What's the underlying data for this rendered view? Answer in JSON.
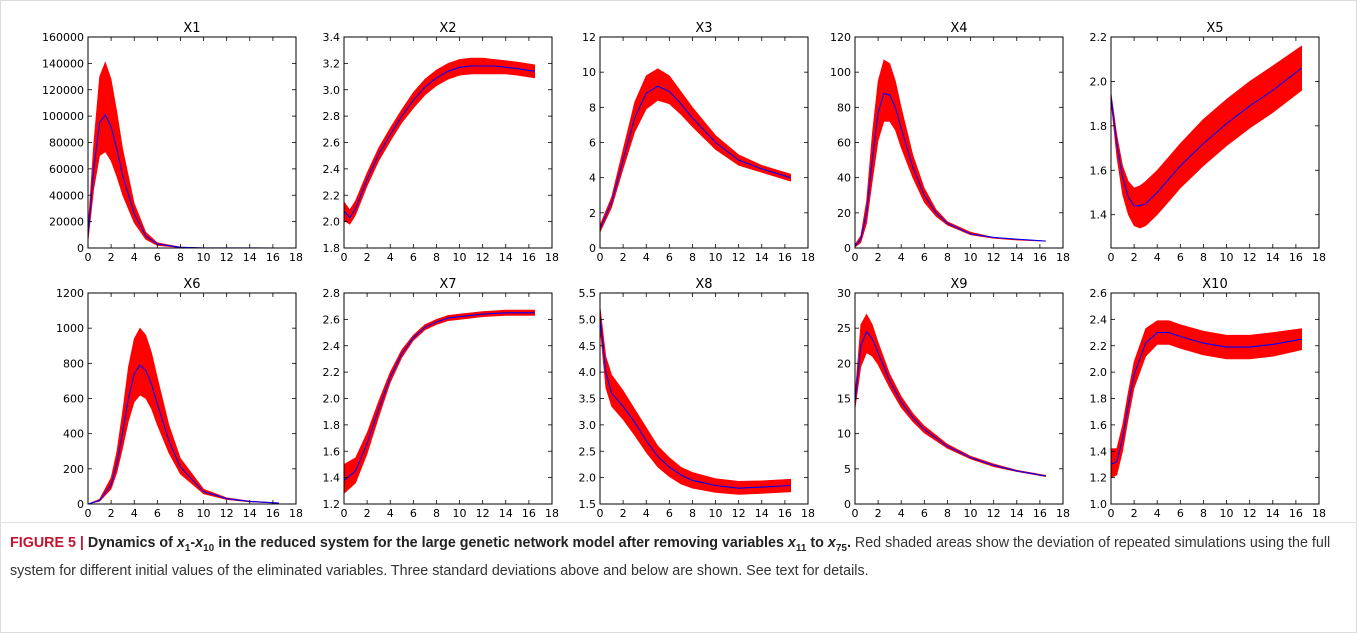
{
  "colors": {
    "band": "#ff0000",
    "mean_line": "#0000ff",
    "axes": "#000000",
    "caption_label": "#c4122f"
  },
  "caption": {
    "label": "FIGURE 5 | ",
    "title_parts": [
      "Dynamics of ",
      "x",
      "1",
      "-",
      "x",
      "10",
      " in the reduced system for the large genetic network model after removing variables ",
      "x",
      "11",
      " to ",
      "x",
      "75",
      "."
    ],
    "body": " Red shaded areas show the deviation of repeated simulations using the full system for different initial values of the eliminated variables. Three standard deviations above and below are shown. See text for details."
  },
  "chart_data": [
    {
      "type": "area",
      "title": "X1",
      "xlim": [
        0,
        18
      ],
      "ylim": [
        0,
        160000
      ],
      "xticks": [
        "0",
        "2",
        "4",
        "6",
        "8",
        "10",
        "12",
        "14",
        "16",
        "18"
      ],
      "yticks": [
        "0",
        "20000",
        "40000",
        "60000",
        "80000",
        "100000",
        "120000",
        "140000",
        "160000"
      ],
      "x": [
        0,
        0.5,
        1,
        1.5,
        2,
        2.5,
        3,
        4,
        5,
        6,
        8,
        10,
        16.5
      ],
      "mean": [
        10000,
        60000,
        95000,
        101000,
        92000,
        75000,
        55000,
        26000,
        9000,
        3000,
        500,
        100,
        0
      ],
      "upper": [
        15000,
        80000,
        130000,
        141000,
        128000,
        103000,
        75000,
        34000,
        12000,
        4000,
        700,
        150,
        0
      ],
      "lower": [
        5000,
        45000,
        70000,
        73000,
        66000,
        54000,
        40000,
        19000,
        6500,
        2000,
        300,
        50,
        0
      ]
    },
    {
      "type": "area",
      "title": "X2",
      "xlim": [
        0,
        18
      ],
      "ylim": [
        1.8,
        3.4
      ],
      "xticks": [
        "0",
        "2",
        "4",
        "6",
        "8",
        "10",
        "12",
        "14",
        "16",
        "18"
      ],
      "yticks": [
        "1.8",
        "2.0",
        "2.2",
        "2.4",
        "2.6",
        "2.8",
        "3.0",
        "3.2",
        "3.4"
      ],
      "x": [
        0,
        0.5,
        1,
        2,
        3,
        4,
        5,
        6,
        7,
        8,
        9,
        10,
        11,
        12,
        13,
        14,
        15,
        16.5
      ],
      "mean": [
        2.08,
        2.03,
        2.1,
        2.32,
        2.51,
        2.66,
        2.8,
        2.92,
        3.02,
        3.09,
        3.14,
        3.17,
        3.18,
        3.18,
        3.18,
        3.17,
        3.16,
        3.14
      ],
      "upper": [
        2.15,
        2.09,
        2.16,
        2.37,
        2.56,
        2.71,
        2.85,
        2.98,
        3.08,
        3.15,
        3.2,
        3.23,
        3.24,
        3.24,
        3.23,
        3.22,
        3.21,
        3.19
      ],
      "lower": [
        2.01,
        1.98,
        2.05,
        2.27,
        2.46,
        2.61,
        2.75,
        2.86,
        2.96,
        3.03,
        3.08,
        3.11,
        3.12,
        3.12,
        3.12,
        3.12,
        3.11,
        3.09
      ]
    },
    {
      "type": "area",
      "title": "X3",
      "xlim": [
        0,
        18
      ],
      "ylim": [
        0,
        12
      ],
      "xticks": [
        "0",
        "2",
        "4",
        "6",
        "8",
        "10",
        "12",
        "14",
        "16",
        "18"
      ],
      "yticks": [
        "0",
        "2",
        "4",
        "6",
        "8",
        "10",
        "12"
      ],
      "x": [
        0,
        1,
        2,
        3,
        4,
        5,
        6,
        7,
        8,
        10,
        12,
        14,
        16.5
      ],
      "mean": [
        1.1,
        2.6,
        5.0,
        7.4,
        8.8,
        9.2,
        8.9,
        8.2,
        7.4,
        6.0,
        5.0,
        4.5,
        4.0
      ],
      "upper": [
        1.3,
        2.9,
        5.6,
        8.3,
        9.8,
        10.2,
        9.8,
        8.9,
        8.0,
        6.4,
        5.3,
        4.7,
        4.2
      ],
      "lower": [
        0.9,
        2.3,
        4.5,
        6.6,
        7.9,
        8.4,
        8.2,
        7.6,
        6.9,
        5.6,
        4.7,
        4.3,
        3.8
      ]
    },
    {
      "type": "area",
      "title": "X4",
      "xlim": [
        0,
        18
      ],
      "ylim": [
        0,
        120
      ],
      "xticks": [
        "0",
        "2",
        "4",
        "6",
        "8",
        "10",
        "12",
        "14",
        "16",
        "18"
      ],
      "yticks": [
        "0",
        "20",
        "40",
        "60",
        "80",
        "100",
        "120"
      ],
      "x": [
        0,
        0.5,
        1,
        1.5,
        2,
        2.5,
        3,
        3.5,
        4,
        5,
        6,
        7,
        8,
        10,
        12,
        14,
        16.5
      ],
      "mean": [
        1,
        5,
        20,
        50,
        77,
        88,
        87,
        80,
        68,
        46,
        30,
        20,
        14,
        8,
        6,
        5,
        4
      ],
      "upper": [
        2,
        7,
        27,
        65,
        95,
        107,
        105,
        95,
        80,
        53,
        34,
        22,
        15,
        9,
        6,
        5,
        4
      ],
      "lower": [
        0.5,
        3,
        14,
        38,
        61,
        72,
        72,
        67,
        57,
        40,
        26,
        18,
        13,
        7.5,
        5.5,
        4.5,
        3.8
      ]
    },
    {
      "type": "area",
      "title": "X5",
      "xlim": [
        0,
        18
      ],
      "ylim": [
        1.25,
        2.2
      ],
      "xticks": [
        "0",
        "2",
        "4",
        "6",
        "8",
        "10",
        "12",
        "14",
        "16",
        "18"
      ],
      "yticks": [
        "1.4",
        "1.6",
        "1.8",
        "2.0",
        "2.2"
      ],
      "x": [
        0,
        0.5,
        1,
        1.5,
        2,
        2.5,
        3,
        4,
        5,
        6,
        8,
        10,
        12,
        14,
        16.5
      ],
      "mean": [
        1.93,
        1.72,
        1.57,
        1.48,
        1.44,
        1.44,
        1.45,
        1.5,
        1.56,
        1.62,
        1.72,
        1.81,
        1.89,
        1.96,
        2.06
      ],
      "upper": [
        1.95,
        1.76,
        1.62,
        1.55,
        1.52,
        1.53,
        1.55,
        1.6,
        1.66,
        1.72,
        1.83,
        1.92,
        2.0,
        2.07,
        2.16
      ],
      "lower": [
        1.91,
        1.66,
        1.49,
        1.4,
        1.35,
        1.34,
        1.35,
        1.4,
        1.46,
        1.52,
        1.62,
        1.71,
        1.79,
        1.86,
        1.96
      ]
    },
    {
      "type": "area",
      "title": "X6",
      "xlim": [
        0,
        18
      ],
      "ylim": [
        0,
        1200
      ],
      "xticks": [
        "0",
        "2",
        "4",
        "6",
        "8",
        "10",
        "12",
        "14",
        "16",
        "18"
      ],
      "yticks": [
        "0",
        "200",
        "400",
        "600",
        "800",
        "1000",
        "1200"
      ],
      "x": [
        0,
        1,
        2,
        2.5,
        3,
        3.5,
        4,
        4.5,
        5,
        5.5,
        6,
        7,
        8,
        10,
        12,
        14,
        16.5
      ],
      "mean": [
        0,
        20,
        110,
        230,
        410,
        600,
        740,
        790,
        760,
        680,
        570,
        360,
        210,
        70,
        30,
        15,
        5
      ],
      "upper": [
        0,
        28,
        150,
        300,
        530,
        780,
        940,
        1000,
        960,
        860,
        720,
        450,
        260,
        85,
        35,
        17,
        6
      ],
      "lower": [
        0,
        15,
        85,
        180,
        320,
        470,
        580,
        620,
        600,
        540,
        450,
        290,
        170,
        58,
        25,
        12,
        4
      ]
    },
    {
      "type": "area",
      "title": "X7",
      "xlim": [
        0,
        18
      ],
      "ylim": [
        1.2,
        2.8
      ],
      "xticks": [
        "0",
        "2",
        "4",
        "6",
        "8",
        "10",
        "12",
        "14",
        "16",
        "18"
      ],
      "yticks": [
        "1.2",
        "1.4",
        "1.6",
        "1.8",
        "2.0",
        "2.2",
        "2.4",
        "2.6",
        "2.8"
      ],
      "x": [
        0,
        1,
        2,
        3,
        4,
        5,
        6,
        7,
        8,
        9,
        10,
        12,
        14,
        16.5
      ],
      "mean": [
        1.38,
        1.45,
        1.66,
        1.92,
        2.16,
        2.34,
        2.46,
        2.54,
        2.58,
        2.61,
        2.62,
        2.64,
        2.65,
        2.65
      ],
      "upper": [
        1.5,
        1.55,
        1.74,
        1.98,
        2.2,
        2.37,
        2.48,
        2.56,
        2.6,
        2.63,
        2.64,
        2.66,
        2.67,
        2.67
      ],
      "lower": [
        1.28,
        1.36,
        1.58,
        1.86,
        2.12,
        2.31,
        2.44,
        2.52,
        2.56,
        2.59,
        2.6,
        2.62,
        2.63,
        2.63
      ]
    },
    {
      "type": "area",
      "title": "X8",
      "xlim": [
        0,
        18
      ],
      "ylim": [
        1.5,
        5.5
      ],
      "xticks": [
        "0",
        "2",
        "4",
        "6",
        "8",
        "10",
        "12",
        "14",
        "16",
        "18"
      ],
      "yticks": [
        "1.5",
        "2.0",
        "2.5",
        "3.0",
        "3.5",
        "4.0",
        "4.5",
        "5.0",
        "5.5"
      ],
      "x": [
        0,
        0.5,
        1,
        2,
        3,
        4,
        5,
        6,
        7,
        8,
        10,
        12,
        14,
        16.5
      ],
      "mean": [
        5.05,
        4.0,
        3.6,
        3.35,
        3.05,
        2.7,
        2.4,
        2.2,
        2.05,
        1.95,
        1.85,
        1.8,
        1.82,
        1.85
      ],
      "upper": [
        5.25,
        4.3,
        3.95,
        3.65,
        3.3,
        2.95,
        2.6,
        2.38,
        2.2,
        2.1,
        1.98,
        1.93,
        1.94,
        1.97
      ],
      "lower": [
        4.85,
        3.7,
        3.35,
        3.1,
        2.8,
        2.48,
        2.2,
        2.02,
        1.88,
        1.8,
        1.72,
        1.68,
        1.7,
        1.73
      ]
    },
    {
      "type": "area",
      "title": "X9",
      "xlim": [
        0,
        18
      ],
      "ylim": [
        0,
        30
      ],
      "xticks": [
        "0",
        "2",
        "4",
        "6",
        "8",
        "10",
        "12",
        "14",
        "16",
        "18"
      ],
      "yticks": [
        "0",
        "5",
        "10",
        "15",
        "20",
        "25",
        "30"
      ],
      "x": [
        0,
        0.5,
        1,
        1.5,
        2,
        3,
        4,
        5,
        6,
        8,
        10,
        12,
        14,
        16.5
      ],
      "mean": [
        14.5,
        22.5,
        24.5,
        23.5,
        21.5,
        17.5,
        14.5,
        12.3,
        10.6,
        8.2,
        6.6,
        5.5,
        4.7,
        4.0
      ],
      "upper": [
        15.5,
        25.5,
        27.0,
        25.5,
        23.0,
        18.5,
        15.3,
        12.9,
        11.1,
        8.5,
        6.8,
        5.7,
        4.8,
        4.1
      ],
      "lower": [
        13.5,
        19.5,
        21.5,
        21.0,
        19.8,
        16.5,
        13.7,
        11.7,
        10.1,
        7.9,
        6.4,
        5.3,
        4.6,
        3.9
      ]
    },
    {
      "type": "area",
      "title": "X10",
      "xlim": [
        0,
        18
      ],
      "ylim": [
        1.0,
        2.6
      ],
      "xticks": [
        "0",
        "2",
        "4",
        "6",
        "8",
        "10",
        "12",
        "14",
        "16",
        "18"
      ],
      "yticks": [
        "1.0",
        "1.2",
        "1.4",
        "1.6",
        "1.8",
        "2.0",
        "2.2",
        "2.4",
        "2.6"
      ],
      "x": [
        0,
        0.5,
        1,
        1.5,
        2,
        3,
        4,
        5,
        6,
        8,
        10,
        12,
        14,
        16.5
      ],
      "mean": [
        1.3,
        1.32,
        1.5,
        1.75,
        1.98,
        2.22,
        2.3,
        2.3,
        2.27,
        2.22,
        2.19,
        2.19,
        2.21,
        2.25
      ],
      "upper": [
        1.42,
        1.42,
        1.6,
        1.85,
        2.08,
        2.33,
        2.39,
        2.39,
        2.36,
        2.31,
        2.28,
        2.28,
        2.3,
        2.33
      ],
      "lower": [
        1.2,
        1.22,
        1.4,
        1.65,
        1.88,
        2.12,
        2.21,
        2.21,
        2.18,
        2.13,
        2.1,
        2.1,
        2.12,
        2.17
      ]
    }
  ]
}
